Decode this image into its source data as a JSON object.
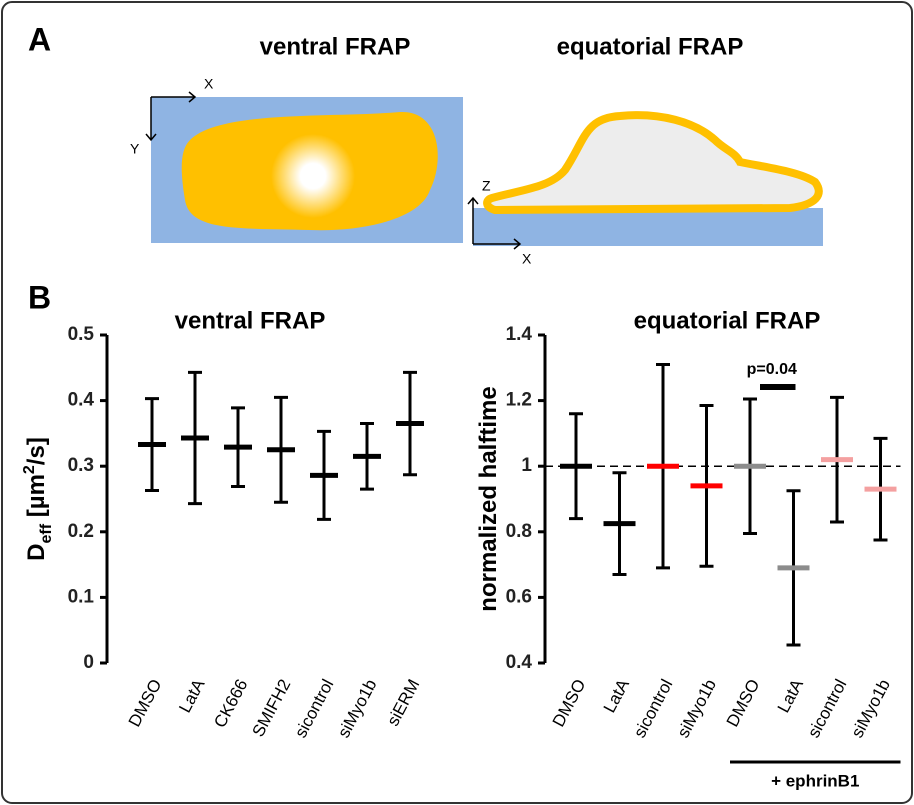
{
  "panel_a": {
    "label": "A",
    "left_title": "ventral FRAP",
    "right_title": "equatorial FRAP",
    "left_x_axis": "X",
    "left_y_axis": "Y",
    "right_z_axis": "Z",
    "right_x_axis": "X"
  },
  "panel_b_label": "B",
  "chart_data": [
    {
      "type": "errorbar",
      "title": "ventral FRAP",
      "ylabel": [
        "D",
        "eff",
        " [µm",
        "2",
        "/s]"
      ],
      "categories": [
        "DMSO",
        "LatA",
        "CK666",
        "SMIFH2",
        "sicontrol",
        "siMyo1b",
        "siERM"
      ],
      "values": [
        0.333,
        0.343,
        0.329,
        0.325,
        0.286,
        0.315,
        0.365
      ],
      "errors": [
        0.07,
        0.1,
        0.06,
        0.08,
        0.067,
        0.05,
        0.078
      ],
      "colors": [
        "#000000",
        "#000000",
        "#000000",
        "#000000",
        "#000000",
        "#000000",
        "#000000"
      ],
      "ylim": [
        0,
        0.5
      ],
      "yticks": [
        0,
        0.1,
        0.2,
        0.3,
        0.4,
        0.5
      ]
    },
    {
      "type": "errorbar",
      "title": "equatorial FRAP",
      "ylabel": [
        "normalized halftime"
      ],
      "categories": [
        "DMSO",
        "LatA",
        "sicontrol",
        "siMyo1b",
        "DMSO",
        "LatA",
        "sicontrol",
        "siMyo1b"
      ],
      "values": [
        1,
        0.825,
        1,
        0.94,
        1,
        0.69,
        1.02,
        0.93
      ],
      "errors": [
        0.16,
        0.155,
        0.31,
        0.245,
        0.205,
        0.235,
        0.19,
        0.155
      ],
      "colors": [
        "#000000",
        "#000000",
        "#ff0000",
        "#ff0000",
        "#8c8c8c",
        "#8c8c8c",
        "#f4a0a0",
        "#f4a0a0"
      ],
      "ylim": [
        0.4,
        1.4
      ],
      "yticks": [
        0.4,
        0.6,
        0.8,
        1,
        1.2,
        1.4
      ],
      "reference_line": 1,
      "annotation": {
        "text": "p=0.04",
        "from": 4,
        "to": 5
      },
      "group": {
        "label": "+ ephrinB1",
        "from": 4,
        "to": 7
      }
    }
  ]
}
